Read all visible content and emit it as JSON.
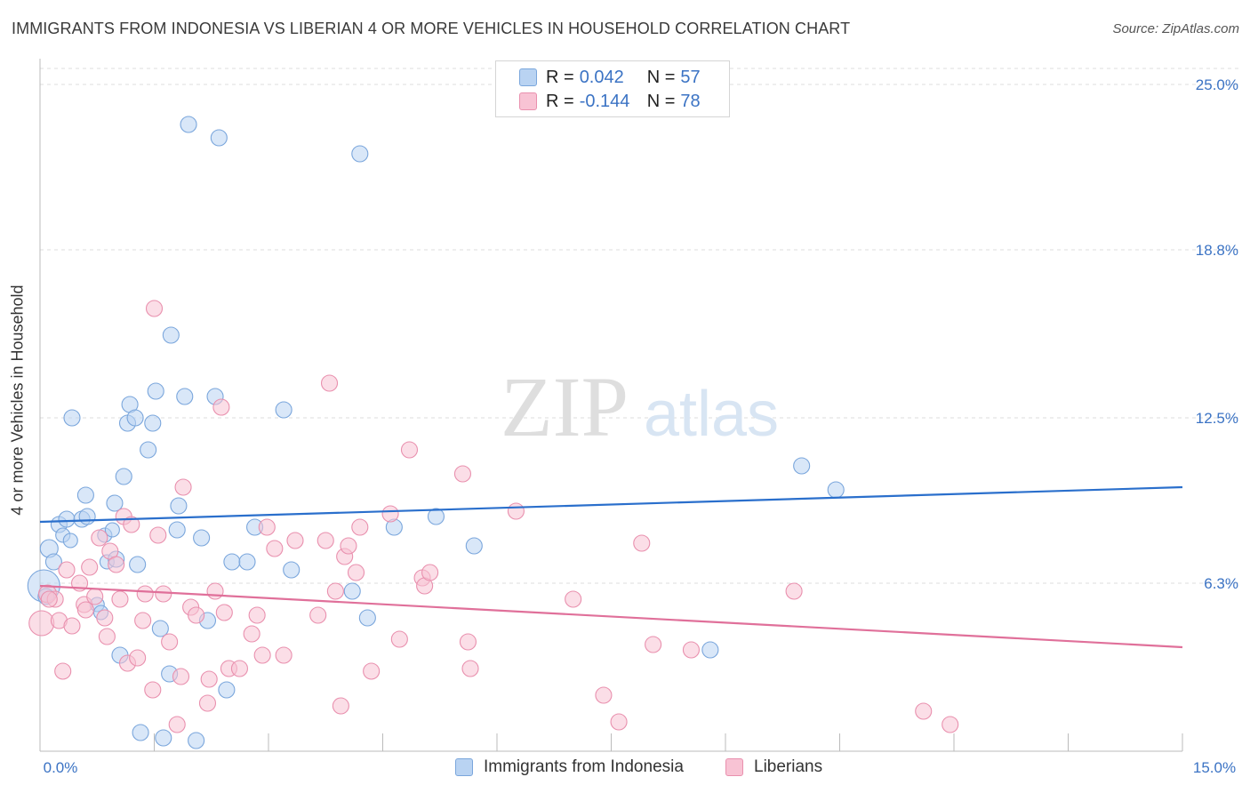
{
  "title": "IMMIGRANTS FROM INDONESIA VS LIBERIAN 4 OR MORE VEHICLES IN HOUSEHOLD CORRELATION CHART",
  "source": "Source: ZipAtlas.com",
  "watermark": {
    "zip": "ZIP",
    "atlas": "atlas"
  },
  "legend": {
    "rows": [
      {
        "r_label": "R =",
        "r_value": "0.042",
        "n_label": "N =",
        "n_value": "57",
        "fill": "#b9d3f2",
        "stroke": "#7aa6dc"
      },
      {
        "r_label": "R =",
        "r_value": "-0.144",
        "n_label": "N =",
        "n_value": "78",
        "fill": "#f8c3d4",
        "stroke": "#e990ae"
      }
    ]
  },
  "bottom_legend": [
    {
      "label": "Immigrants from Indonesia",
      "fill": "#b9d3f2",
      "stroke": "#7aa6dc"
    },
    {
      "label": "Liberians",
      "fill": "#f8c3d4",
      "stroke": "#e990ae"
    }
  ],
  "chart_data": {
    "type": "scatter",
    "title": "IMMIGRANTS FROM INDONESIA VS LIBERIAN 4 OR MORE VEHICLES IN HOUSEHOLD CORRELATION CHART",
    "xlabel": "",
    "ylabel": "4 or more Vehicles in Household",
    "xlim": [
      0,
      15
    ],
    "ylim": [
      0,
      25.6
    ],
    "x_tick_labels": [
      "0.0%",
      "15.0%"
    ],
    "y_ticks": [
      6.3,
      12.5,
      18.8,
      25.0
    ],
    "y_tick_labels": [
      "6.3%",
      "12.5%",
      "18.8%",
      "25.0%"
    ],
    "grid": "horizontal dashed",
    "legend_position": "top-center",
    "series": [
      {
        "name": "Immigrants from Indonesia",
        "color": "#7aa6dc",
        "fill": "#b9d3f2",
        "line_color": "#2a6fcc",
        "trend": {
          "x": [
            0,
            15
          ],
          "y": [
            8.6,
            9.9
          ]
        },
        "points": [
          [
            0.05,
            6.2,
            18
          ],
          [
            0.12,
            7.6,
            10
          ],
          [
            0.18,
            7.1,
            9
          ],
          [
            0.25,
            8.5,
            9
          ],
          [
            0.3,
            8.1,
            8
          ],
          [
            0.35,
            8.7,
            9
          ],
          [
            0.4,
            7.9,
            8
          ],
          [
            0.42,
            12.5,
            9
          ],
          [
            0.55,
            8.7,
            9
          ],
          [
            0.6,
            9.6,
            9
          ],
          [
            0.62,
            8.8,
            9
          ],
          [
            0.75,
            5.5,
            8
          ],
          [
            0.8,
            5.2,
            8
          ],
          [
            0.85,
            8.1,
            8
          ],
          [
            0.88,
            7.1,
            8
          ],
          [
            0.95,
            8.3,
            8
          ],
          [
            0.98,
            9.3,
            9
          ],
          [
            1.05,
            3.6,
            9
          ],
          [
            1.1,
            10.3,
            9
          ],
          [
            1.15,
            12.3,
            9
          ],
          [
            1.18,
            13.0,
            9
          ],
          [
            1.25,
            12.5,
            9
          ],
          [
            1.28,
            7.0,
            9
          ],
          [
            1.32,
            0.7,
            9
          ],
          [
            1.42,
            11.3,
            9
          ],
          [
            1.48,
            12.3,
            9
          ],
          [
            1.52,
            13.5,
            9
          ],
          [
            1.58,
            4.6,
            9
          ],
          [
            1.62,
            0.5,
            9
          ],
          [
            1.7,
            2.9,
            9
          ],
          [
            1.72,
            15.6,
            9
          ],
          [
            1.8,
            8.3,
            9
          ],
          [
            1.82,
            9.2,
            9
          ],
          [
            1.9,
            13.3,
            9
          ],
          [
            1.95,
            23.5,
            9
          ],
          [
            2.05,
            0.4,
            9
          ],
          [
            2.12,
            8.0,
            9
          ],
          [
            2.2,
            4.9,
            9
          ],
          [
            2.3,
            13.3,
            9
          ],
          [
            2.35,
            23.0,
            9
          ],
          [
            2.45,
            2.3,
            9
          ],
          [
            2.52,
            7.1,
            9
          ],
          [
            2.72,
            7.1,
            9
          ],
          [
            2.82,
            8.4,
            9
          ],
          [
            3.2,
            12.8,
            9
          ],
          [
            3.3,
            6.8,
            9
          ],
          [
            4.1,
            6.0,
            9
          ],
          [
            4.2,
            22.4,
            9
          ],
          [
            4.3,
            5.0,
            9
          ],
          [
            4.65,
            8.4,
            9
          ],
          [
            5.2,
            8.8,
            9
          ],
          [
            5.7,
            7.7,
            9
          ],
          [
            8.8,
            3.8,
            9
          ],
          [
            10.0,
            10.7,
            9
          ],
          [
            10.45,
            9.8,
            9
          ],
          [
            0.08,
            5.8,
            9
          ],
          [
            1.0,
            7.2,
            9
          ]
        ]
      },
      {
        "name": "Liberians",
        "color": "#e990ae",
        "fill": "#f8c3d4",
        "line_color": "#e0709a",
        "trend": {
          "x": [
            0,
            15
          ],
          "y": [
            6.2,
            3.9
          ]
        },
        "points": [
          [
            0.02,
            4.8,
            14
          ],
          [
            0.1,
            5.9,
            10
          ],
          [
            0.2,
            5.7,
            9
          ],
          [
            0.25,
            4.9,
            9
          ],
          [
            0.3,
            3.0,
            9
          ],
          [
            0.35,
            6.8,
            9
          ],
          [
            0.42,
            4.7,
            9
          ],
          [
            0.52,
            6.3,
            9
          ],
          [
            0.58,
            5.5,
            9
          ],
          [
            0.65,
            6.9,
            9
          ],
          [
            0.72,
            5.8,
            9
          ],
          [
            0.78,
            8.0,
            9
          ],
          [
            0.85,
            5.0,
            9
          ],
          [
            0.88,
            4.3,
            9
          ],
          [
            0.92,
            7.5,
            9
          ],
          [
            1.0,
            7.0,
            9
          ],
          [
            1.05,
            5.7,
            9
          ],
          [
            1.1,
            8.8,
            9
          ],
          [
            1.15,
            3.3,
            9
          ],
          [
            1.2,
            8.5,
            9
          ],
          [
            1.28,
            3.5,
            9
          ],
          [
            1.35,
            4.9,
            9
          ],
          [
            1.38,
            5.9,
            9
          ],
          [
            1.48,
            2.3,
            9
          ],
          [
            1.5,
            16.6,
            9
          ],
          [
            1.55,
            8.1,
            9
          ],
          [
            1.62,
            5.9,
            9
          ],
          [
            1.7,
            4.1,
            9
          ],
          [
            1.8,
            1.0,
            9
          ],
          [
            1.85,
            2.8,
            9
          ],
          [
            1.88,
            9.9,
            9
          ],
          [
            1.98,
            5.4,
            9
          ],
          [
            2.05,
            5.1,
            9
          ],
          [
            2.2,
            1.8,
            9
          ],
          [
            2.22,
            2.7,
            9
          ],
          [
            2.3,
            6.0,
            9
          ],
          [
            2.38,
            12.9,
            9
          ],
          [
            2.42,
            5.2,
            9
          ],
          [
            2.48,
            3.1,
            9
          ],
          [
            2.62,
            3.1,
            9
          ],
          [
            2.78,
            4.4,
            9
          ],
          [
            2.85,
            5.1,
            9
          ],
          [
            2.92,
            3.6,
            9
          ],
          [
            2.98,
            8.4,
            9
          ],
          [
            3.08,
            7.6,
            9
          ],
          [
            3.2,
            3.6,
            9
          ],
          [
            3.35,
            7.9,
            9
          ],
          [
            3.65,
            5.1,
            9
          ],
          [
            3.75,
            7.9,
            9
          ],
          [
            3.8,
            13.8,
            9
          ],
          [
            3.88,
            6.0,
            9
          ],
          [
            3.95,
            1.7,
            9
          ],
          [
            4.0,
            7.3,
            9
          ],
          [
            4.05,
            7.7,
            9
          ],
          [
            4.15,
            6.7,
            9
          ],
          [
            4.2,
            8.4,
            9
          ],
          [
            4.35,
            3.0,
            9
          ],
          [
            4.6,
            8.9,
            9
          ],
          [
            4.72,
            4.2,
            9
          ],
          [
            4.85,
            11.3,
            9
          ],
          [
            5.02,
            6.5,
            9
          ],
          [
            5.05,
            6.2,
            9
          ],
          [
            5.12,
            6.7,
            9
          ],
          [
            5.55,
            10.4,
            9
          ],
          [
            5.62,
            4.1,
            9
          ],
          [
            5.65,
            3.1,
            9
          ],
          [
            6.25,
            9.0,
            9
          ],
          [
            7.0,
            5.7,
            9
          ],
          [
            7.4,
            2.1,
            9
          ],
          [
            7.6,
            1.1,
            9
          ],
          [
            7.9,
            7.8,
            9
          ],
          [
            8.05,
            4.0,
            9
          ],
          [
            8.55,
            3.8,
            9
          ],
          [
            9.9,
            6.0,
            9
          ],
          [
            11.6,
            1.5,
            9
          ],
          [
            11.95,
            1.0,
            9
          ],
          [
            0.12,
            5.7,
            9
          ],
          [
            0.6,
            5.3,
            9
          ]
        ]
      }
    ]
  }
}
